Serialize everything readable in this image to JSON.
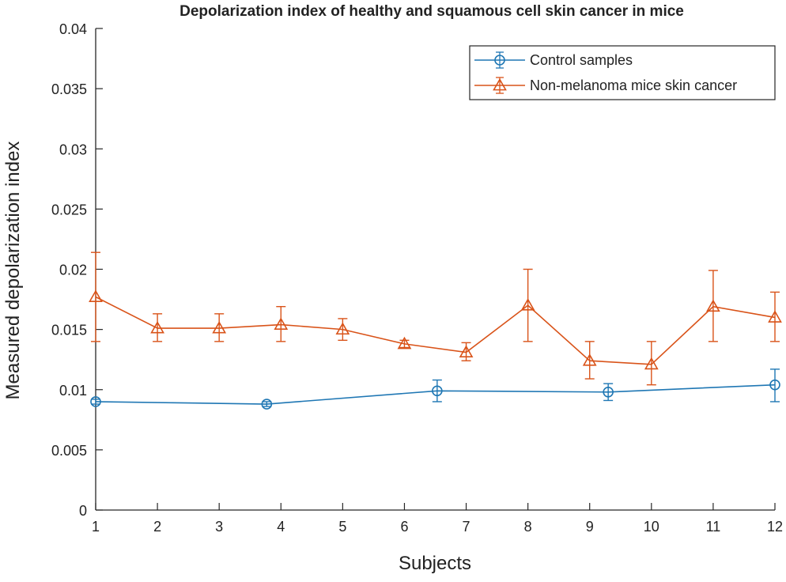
{
  "colors": {
    "control": "#1f77b4",
    "cancer": "#d95319",
    "axis": "#262626",
    "background": "#ffffff"
  },
  "chart_data": {
    "type": "line",
    "title": "Depolarization index of healthy and squamous cell skin cancer in mice",
    "xlabel": "Subjects",
    "ylabel": "Measured depolarization index",
    "xlim": [
      1,
      12
    ],
    "ylim": [
      0,
      0.04
    ],
    "xticks": [
      "1",
      "2",
      "3",
      "4",
      "5",
      "6",
      "7",
      "8",
      "9",
      "10",
      "11",
      "12"
    ],
    "yticks": [
      "0",
      "0.005",
      "0.01",
      "0.015",
      "0.02",
      "0.025",
      "0.03",
      "0.035",
      "0.04"
    ],
    "grid": false,
    "legend_position": "top-right",
    "series": [
      {
        "name": "Control samples",
        "marker": "circle",
        "color": "#1f77b4",
        "x": [
          1,
          3.77,
          6.53,
          9.3,
          12
        ],
        "y": [
          0.009,
          0.0088,
          0.0099,
          0.0098,
          0.0104
        ],
        "err_low": [
          0.0002,
          0.0002,
          0.0009,
          0.0007,
          0.0014
        ],
        "err_high": [
          0.0002,
          0.0002,
          0.0009,
          0.0007,
          0.0013
        ]
      },
      {
        "name": "Non-melanoma mice skin cancer",
        "marker": "triangle",
        "color": "#d95319",
        "x": [
          1,
          2,
          3,
          4,
          5,
          6,
          7,
          8,
          9,
          10,
          11,
          12
        ],
        "y": [
          0.0177,
          0.0151,
          0.0151,
          0.0154,
          0.015,
          0.0138,
          0.0131,
          0.017,
          0.0124,
          0.0121,
          0.0169,
          0.016
        ],
        "err_low": [
          0.0037,
          0.0011,
          0.0011,
          0.0014,
          0.0009,
          0.0003,
          0.0007,
          0.003,
          0.0015,
          0.0017,
          0.0029,
          0.002
        ],
        "err_high": [
          0.0037,
          0.0012,
          0.0012,
          0.0015,
          0.0009,
          0.0003,
          0.0008,
          0.003,
          0.0016,
          0.0019,
          0.003,
          0.0021
        ]
      }
    ]
  }
}
